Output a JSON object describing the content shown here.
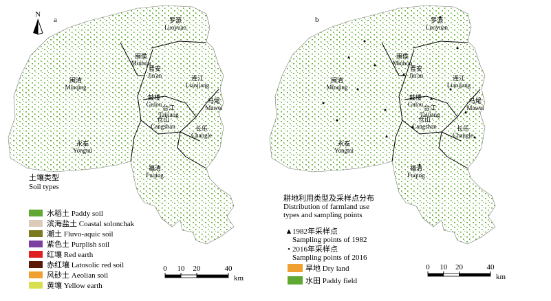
{
  "north": "N",
  "panels": [
    {
      "label": "a"
    },
    {
      "label": "b"
    }
  ],
  "regions": [
    {
      "zh": "罗源",
      "en": "Luoyuan"
    },
    {
      "zh": "闽侯",
      "en": "Minhou"
    },
    {
      "zh": "连江",
      "en": "Lianjiang"
    },
    {
      "zh": "晋安",
      "en": "Jin'an"
    },
    {
      "zh": "闽清",
      "en": "Minqing"
    },
    {
      "zh": "鼓楼",
      "en": "Gulou"
    },
    {
      "zh": "台江",
      "en": "Taijiang"
    },
    {
      "zh": "马尾",
      "en": "Mawei"
    },
    {
      "zh": "仓山",
      "en": "Cangshan"
    },
    {
      "zh": "长乐",
      "en": "Changle"
    },
    {
      "zh": "永泰",
      "en": "Yongtai"
    },
    {
      "zh": "福清",
      "en": "Fuqing"
    }
  ],
  "soil_legend": {
    "title_zh": "土壤类型",
    "title_en": "Soil types",
    "items": [
      {
        "label": "水稻土 Paddy soil",
        "color": "#5fa832"
      },
      {
        "label": "滨海盐土 Coastal solonchak",
        "color": "#dccbb8"
      },
      {
        "label": "潮土 Fluvo-aquic soil",
        "color": "#7a7a1e"
      },
      {
        "label": "紫色土 Purplish soil",
        "color": "#7b3fa0"
      },
      {
        "label": "红壤 Red earth",
        "color": "#e02020"
      },
      {
        "label": "赤红壤 Latosolic red soil",
        "color": "#5a1a0a"
      },
      {
        "label": "风砂土 Aeolian soil",
        "color": "#f0a030"
      },
      {
        "label": "黄壤 Yellow earth",
        "color": "#d8e050"
      }
    ]
  },
  "use_legend": {
    "title": [
      "耕地利用类型及采样点分布",
      "Distribution of farmland use",
      "types and sampling points"
    ],
    "points": [
      {
        "zh": "1982年采样点",
        "en": "Sampling points of 1982",
        "marker": "▲"
      },
      {
        "zh": "2016年采样点",
        "en": "Sampling points of 2016",
        "marker": "•"
      }
    ],
    "items": [
      {
        "label": "旱地 Dry land",
        "color": "#f0a030"
      },
      {
        "label": "水田 Paddy field",
        "color": "#5fa832"
      }
    ]
  },
  "scale": {
    "ticks": [
      0,
      10,
      20,
      40
    ],
    "unit": "km"
  }
}
